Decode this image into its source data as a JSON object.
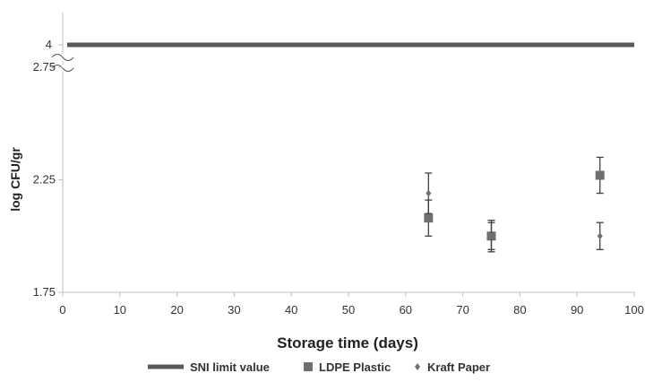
{
  "chart_data": {
    "type": "scatter",
    "xlabel": "Storage time (days)",
    "ylabel": "log CFU/gr",
    "xlim": [
      0,
      100
    ],
    "ylim": [
      1.75,
      2.75
    ],
    "x_ticks": [
      "0",
      "10",
      "20",
      "30",
      "40",
      "50",
      "60",
      "70",
      "80",
      "90",
      "100"
    ],
    "y_ticks": [
      "1.75",
      "2.25",
      "2.75"
    ],
    "y_break_tick": "4",
    "y_axis_break": true,
    "grid": false,
    "legend_position": "bottom",
    "series": [
      {
        "name": "SNI limit value",
        "type": "line",
        "y": 4,
        "color": "#595959"
      },
      {
        "name": "LDPE Plastic",
        "marker": "square",
        "color": "#707070",
        "points": [
          {
            "x": 64,
            "y": 2.08,
            "err": 0.08
          },
          {
            "x": 75,
            "y": 2.0,
            "err": 0.07
          },
          {
            "x": 94,
            "y": 2.27,
            "err": 0.08
          }
        ]
      },
      {
        "name": "Kraft Paper",
        "marker": "diamond",
        "color": "#707070",
        "points": [
          {
            "x": 64,
            "y": 2.19,
            "err": 0.09
          },
          {
            "x": 75,
            "y": 2.0,
            "err": 0.06
          },
          {
            "x": 94,
            "y": 2.0,
            "err": 0.06
          }
        ]
      }
    ]
  }
}
